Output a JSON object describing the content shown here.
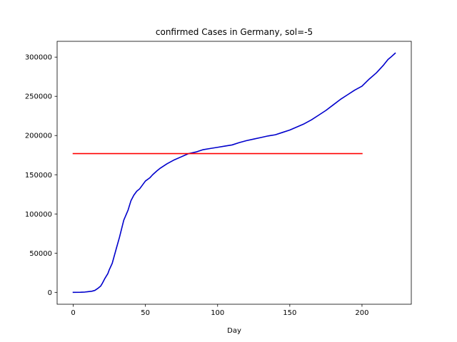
{
  "chart_data": {
    "type": "line",
    "title": "confirmed Cases in Germany, sol=-5",
    "xlabel": "Day",
    "ylabel": "",
    "xlim": [
      -11.15,
      234.15
    ],
    "ylim": [
      -15150,
      320150
    ],
    "x_ticks": [
      0,
      50,
      100,
      150,
      200
    ],
    "x_tick_labels": [
      "0",
      "50",
      "100",
      "150",
      "200"
    ],
    "y_ticks": [
      0,
      50000,
      100000,
      150000,
      200000,
      250000,
      300000
    ],
    "y_tick_labels": [
      "0",
      "50000",
      "100000",
      "150000",
      "200000",
      "250000",
      "300000"
    ],
    "grid": false,
    "series": [
      {
        "color": "#0000cc",
        "x": [
          0,
          5,
          8,
          10,
          13,
          15,
          17,
          19,
          20,
          22,
          24,
          25,
          27,
          30,
          32,
          35,
          38,
          40,
          42,
          44,
          46,
          48,
          50,
          53,
          55,
          58,
          60,
          65,
          70,
          75,
          80,
          85,
          90,
          95,
          100,
          105,
          110,
          115,
          120,
          125,
          130,
          135,
          140,
          145,
          150,
          155,
          160,
          165,
          170,
          175,
          180,
          185,
          190,
          195,
          200,
          205,
          210,
          215,
          218,
          220,
          223
        ],
        "y": [
          0,
          100,
          400,
          800,
          1500,
          2500,
          5000,
          8000,
          11000,
          18000,
          24000,
          29000,
          37000,
          57000,
          70000,
          92000,
          105000,
          117000,
          124000,
          129000,
          132000,
          137000,
          142000,
          146000,
          150000,
          155000,
          158000,
          164000,
          169000,
          173000,
          177000,
          179000,
          182000,
          183500,
          185000,
          186500,
          188000,
          191000,
          193500,
          195500,
          197500,
          199500,
          201000,
          204000,
          207000,
          211000,
          215000,
          220000,
          226000,
          232000,
          239000,
          246000,
          252000,
          258000,
          263000,
          272000,
          280000,
          290000,
          297000,
          300000,
          305000
        ]
      },
      {
        "color": "#ff0000",
        "x": [
          0,
          200
        ],
        "y": [
          177000,
          177000
        ]
      }
    ]
  }
}
